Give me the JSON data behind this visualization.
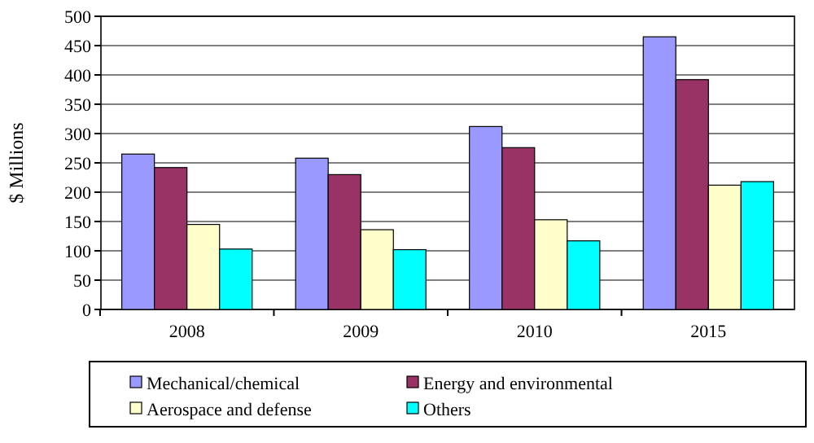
{
  "chart_data": {
    "type": "bar",
    "ylabel": "$ Millions",
    "categories": [
      "2008",
      "2009",
      "2010",
      "2015"
    ],
    "series": [
      {
        "name": "Mechanical/chemical",
        "color": "#9999ff",
        "values": [
          265,
          258,
          312,
          465
        ]
      },
      {
        "name": "Energy and environmental",
        "color": "#993366",
        "values": [
          242,
          230,
          276,
          392
        ]
      },
      {
        "name": "Aerospace and defense",
        "color": "#ffffcc",
        "values": [
          145,
          136,
          153,
          212
        ]
      },
      {
        "name": "Others",
        "color": "#00ffff",
        "values": [
          103,
          102,
          117,
          218
        ]
      }
    ],
    "ylim": [
      0,
      500
    ],
    "yticks": [
      0,
      50,
      100,
      150,
      200,
      250,
      300,
      350,
      400,
      450,
      500
    ],
    "grid": "y",
    "legend": "bottom"
  }
}
